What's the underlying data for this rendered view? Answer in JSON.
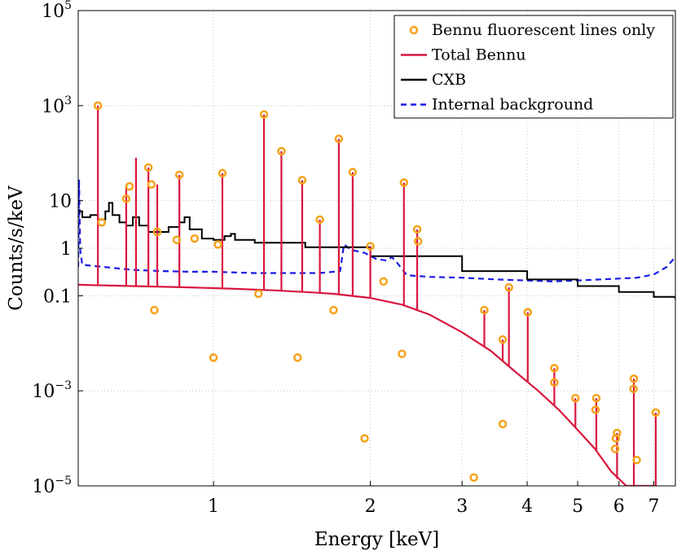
{
  "chart_data": {
    "type": "line",
    "xlabel": "Energy [keV]",
    "ylabel": "Counts/s/keV",
    "x_scale": "log",
    "y_scale": "log",
    "xlim": [
      0.55,
      7.7
    ],
    "ylim": [
      1e-05,
      100000.0
    ],
    "grid": true,
    "legend_position": "top-right",
    "x_ticks": [
      {
        "value": 1,
        "label": "1"
      },
      {
        "value": 2,
        "label": "2"
      },
      {
        "value": 3,
        "label": "3"
      },
      {
        "value": 4,
        "label": "4"
      },
      {
        "value": 5,
        "label": "5"
      },
      {
        "value": 6,
        "label": "6"
      },
      {
        "value": 7,
        "label": "7"
      }
    ],
    "y_ticks": [
      {
        "value": 100000.0,
        "base": "10",
        "exp": "5",
        "plain": ""
      },
      {
        "value": 1000.0,
        "base": "10",
        "exp": "3",
        "plain": ""
      },
      {
        "value": 10,
        "base": "",
        "exp": "",
        "plain": "10"
      },
      {
        "value": 1,
        "base": "",
        "exp": "",
        "plain": "1"
      },
      {
        "value": 0.1,
        "base": "",
        "exp": "",
        "plain": "0.1"
      },
      {
        "value": 0.001,
        "base": "10",
        "exp": "−3",
        "plain": ""
      },
      {
        "value": 1e-05,
        "base": "10",
        "exp": "−5",
        "plain": ""
      }
    ],
    "colors": {
      "fluorescent": "#f5a31a",
      "total": "#d9163f",
      "cxb": "#000000",
      "internal": "#1a1ae6"
    },
    "series": [
      {
        "name": "Bennu fluorescent lines only",
        "style": "markers",
        "points": [
          [
            0.6,
            1000
          ],
          [
            0.61,
            3.5
          ],
          [
            0.68,
            11
          ],
          [
            0.69,
            20
          ],
          [
            0.75,
            50
          ],
          [
            0.76,
            22
          ],
          [
            0.77,
            0.05
          ],
          [
            0.78,
            2.2
          ],
          [
            0.85,
            1.5
          ],
          [
            0.86,
            35
          ],
          [
            0.92,
            1.6
          ],
          [
            1.0,
            0.005
          ],
          [
            1.04,
            38
          ],
          [
            1.02,
            1.2
          ],
          [
            1.22,
            0.11
          ],
          [
            1.25,
            650
          ],
          [
            1.35,
            110
          ],
          [
            1.45,
            0.005
          ],
          [
            1.48,
            27
          ],
          [
            1.6,
            4.0
          ],
          [
            1.7,
            0.05
          ],
          [
            1.74,
            200
          ],
          [
            1.85,
            40
          ],
          [
            1.95,
            0.0001
          ],
          [
            2.0,
            1.1
          ],
          [
            2.12,
            0.2
          ],
          [
            2.3,
            0.006
          ],
          [
            2.32,
            24
          ],
          [
            2.46,
            2.5
          ],
          [
            2.47,
            1.4
          ],
          [
            3.16,
            1.5e-05
          ],
          [
            3.31,
            0.05
          ],
          [
            3.59,
            0.0002
          ],
          [
            3.59,
            0.012
          ],
          [
            3.69,
            0.15
          ],
          [
            4.01,
            0.045
          ],
          [
            4.51,
            0.0015
          ],
          [
            4.51,
            0.003
          ],
          [
            4.95,
            0.0007
          ],
          [
            5.41,
            0.0004
          ],
          [
            5.43,
            0.0007
          ],
          [
            5.9,
            6e-05
          ],
          [
            5.92,
            0.0001
          ],
          [
            5.95,
            0.00013
          ],
          [
            6.4,
            0.0011
          ],
          [
            6.41,
            0.0018
          ],
          [
            6.49,
            3.5e-05
          ],
          [
            7.06,
            0.00035
          ]
        ]
      },
      {
        "name": "Total Bennu",
        "style": "line",
        "continuum": [
          [
            0.55,
            0.17
          ],
          [
            0.7,
            0.16
          ],
          [
            0.9,
            0.15
          ],
          [
            1.1,
            0.14
          ],
          [
            1.3,
            0.13
          ],
          [
            1.5,
            0.12
          ],
          [
            1.7,
            0.11
          ],
          [
            2.0,
            0.09
          ],
          [
            2.3,
            0.065
          ],
          [
            2.6,
            0.04
          ],
          [
            3.0,
            0.017
          ],
          [
            3.4,
            0.007
          ],
          [
            3.8,
            0.0025
          ],
          [
            4.2,
            0.001
          ],
          [
            4.6,
            0.0004
          ],
          [
            5.0,
            0.00015
          ],
          [
            5.4,
            6e-05
          ],
          [
            5.8,
            2e-05
          ],
          [
            6.2,
            8e-06
          ],
          [
            6.5,
            3e-06
          ],
          [
            7.0,
            9e-07
          ]
        ],
        "lines": [
          [
            0.6,
            1000
          ],
          [
            0.68,
            20
          ],
          [
            0.71,
            80
          ],
          [
            0.75,
            50
          ],
          [
            0.78,
            22
          ],
          [
            0.86,
            35
          ],
          [
            1.04,
            38
          ],
          [
            1.25,
            650
          ],
          [
            1.35,
            110
          ],
          [
            1.48,
            27
          ],
          [
            1.6,
            4.0
          ],
          [
            1.74,
            200
          ],
          [
            1.85,
            40
          ],
          [
            2.0,
            1.1
          ],
          [
            2.32,
            24
          ],
          [
            2.46,
            2.5
          ],
          [
            3.31,
            0.05
          ],
          [
            3.59,
            0.012
          ],
          [
            3.69,
            0.15
          ],
          [
            4.01,
            0.045
          ],
          [
            4.51,
            0.003
          ],
          [
            4.95,
            0.0007
          ],
          [
            5.43,
            0.0007
          ],
          [
            5.95,
            0.00013
          ],
          [
            6.41,
            0.0018
          ],
          [
            7.06,
            0.00035
          ]
        ]
      },
      {
        "name": "CXB",
        "style": "line",
        "points": [
          [
            0.55,
            6
          ],
          [
            0.56,
            4.5
          ],
          [
            0.58,
            5
          ],
          [
            0.6,
            4
          ],
          [
            0.62,
            6
          ],
          [
            0.63,
            9
          ],
          [
            0.64,
            5
          ],
          [
            0.66,
            3.5
          ],
          [
            0.68,
            3
          ],
          [
            0.7,
            4.5
          ],
          [
            0.72,
            3
          ],
          [
            0.75,
            2.2
          ],
          [
            0.78,
            2.2
          ],
          [
            0.82,
            2.8
          ],
          [
            0.86,
            3.5
          ],
          [
            0.88,
            4.5
          ],
          [
            0.9,
            2.5
          ],
          [
            0.95,
            1.6
          ],
          [
            1.0,
            1.5
          ],
          [
            1.05,
            1.8
          ],
          [
            1.08,
            2.0
          ],
          [
            1.1,
            1.5
          ],
          [
            1.2,
            1.3
          ],
          [
            1.5,
            1.05
          ],
          [
            2.0,
            0.68
          ],
          [
            3.0,
            0.33
          ],
          [
            4.0,
            0.22
          ],
          [
            5.0,
            0.16
          ],
          [
            6.0,
            0.12
          ],
          [
            7.0,
            0.095
          ],
          [
            7.7,
            0.085
          ]
        ]
      },
      {
        "name": "Internal background",
        "style": "dashed",
        "points": [
          [
            0.55,
            0.4
          ],
          [
            0.552,
            28
          ],
          [
            0.555,
            0.9
          ],
          [
            0.56,
            0.45
          ],
          [
            0.62,
            0.4
          ],
          [
            0.7,
            0.35
          ],
          [
            0.8,
            0.33
          ],
          [
            0.9,
            0.32
          ],
          [
            1.0,
            0.32
          ],
          [
            1.2,
            0.3
          ],
          [
            1.4,
            0.3
          ],
          [
            1.6,
            0.3
          ],
          [
            1.75,
            0.33
          ],
          [
            1.78,
            1.2
          ],
          [
            1.82,
            1.0
          ],
          [
            1.86,
            0.9
          ],
          [
            1.95,
            0.8
          ],
          [
            2.05,
            0.6
          ],
          [
            2.15,
            0.55
          ],
          [
            2.2,
            0.65
          ],
          [
            2.25,
            0.5
          ],
          [
            2.35,
            0.27
          ],
          [
            2.6,
            0.25
          ],
          [
            3.0,
            0.24
          ],
          [
            3.5,
            0.22
          ],
          [
            4.0,
            0.21
          ],
          [
            4.5,
            0.2
          ],
          [
            5.0,
            0.21
          ],
          [
            5.5,
            0.22
          ],
          [
            6.0,
            0.23
          ],
          [
            6.5,
            0.24
          ],
          [
            7.0,
            0.28
          ],
          [
            7.4,
            0.4
          ],
          [
            7.7,
            0.65
          ]
        ]
      }
    ]
  }
}
